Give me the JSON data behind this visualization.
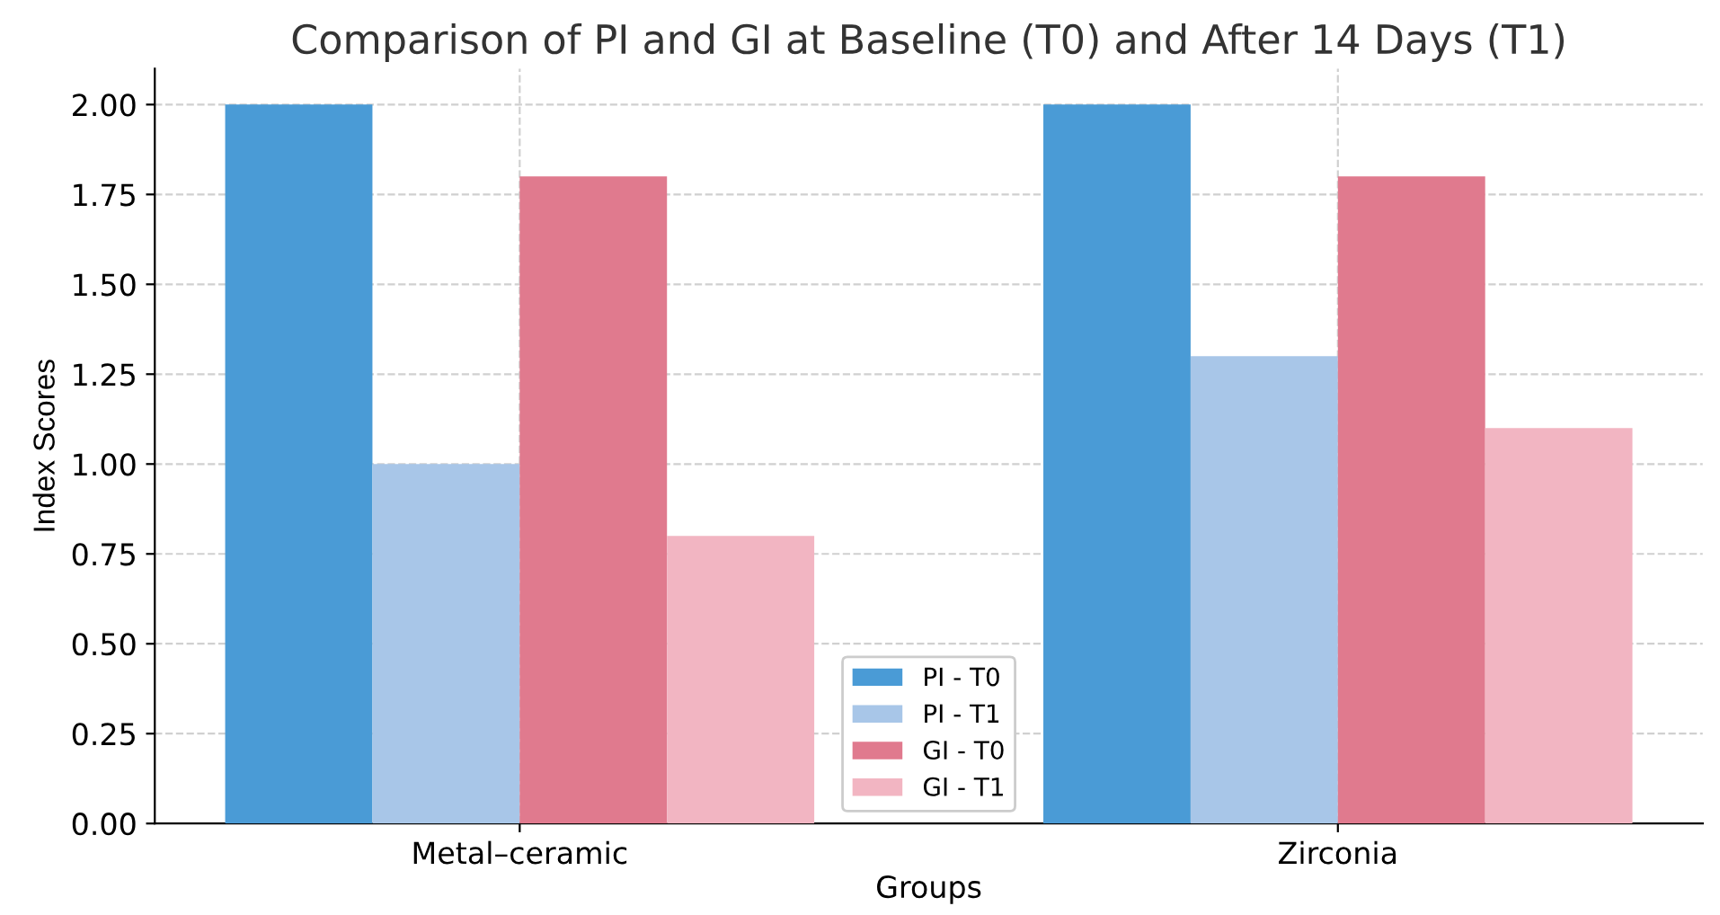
{
  "chart_data": {
    "type": "bar",
    "title": "Comparison of PI and GI at Baseline (T0) and After 14 Days (T1)",
    "xlabel": "Groups",
    "ylabel": "Index Scores",
    "categories": [
      "Metal–ceramic",
      "Zirconia"
    ],
    "series": [
      {
        "name": "PI - T0",
        "color": "#4a9bd6",
        "values": [
          2.0,
          2.0
        ]
      },
      {
        "name": "PI - T1",
        "color": "#a8c6e8",
        "values": [
          1.0,
          1.3
        ]
      },
      {
        "name": "GI - T0",
        "color": "#e07a8e",
        "values": [
          1.8,
          1.8
        ]
      },
      {
        "name": "GI - T1",
        "color": "#f2b5c2",
        "values": [
          0.8,
          1.1
        ]
      }
    ],
    "ylim": [
      0,
      2.1
    ],
    "yticks": [
      {
        "value": 0,
        "label": "0.00"
      },
      {
        "value": 0.25,
        "label": "0.25"
      },
      {
        "value": 0.5,
        "label": "0.50"
      },
      {
        "value": 0.75,
        "label": "0.75"
      },
      {
        "value": 1.0,
        "label": "1.00"
      },
      {
        "value": 1.25,
        "label": "1.25"
      },
      {
        "value": 1.5,
        "label": "1.50"
      },
      {
        "value": 1.75,
        "label": "1.75"
      },
      {
        "value": 2.0,
        "label": "2.00"
      }
    ],
    "grid": true,
    "legend": "bottom"
  }
}
